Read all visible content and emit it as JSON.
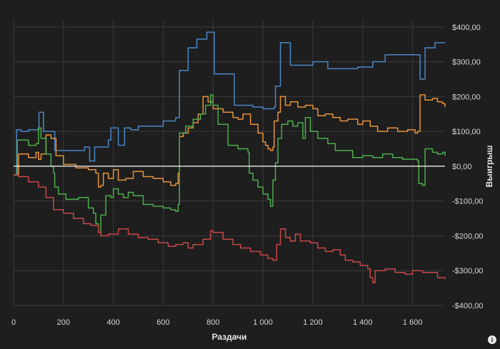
{
  "chart_data": {
    "type": "line",
    "xlabel": "Раздачи",
    "ylabel": "Выигрыш",
    "xlim": [
      0,
      1730
    ],
    "ylim": [
      -400,
      420
    ],
    "x_ticks": [
      0,
      200,
      400,
      600,
      800,
      1000,
      1200,
      1400,
      1600
    ],
    "x_tick_labels": [
      "0",
      "200",
      "400",
      "600",
      "800",
      "1 000",
      "1 200",
      "1 400",
      "1 600"
    ],
    "y_ticks": [
      400,
      300,
      200,
      100,
      0,
      -100,
      -200,
      -300,
      -400
    ],
    "y_tick_labels": [
      "$400,00",
      "$300,00",
      "$200,00",
      "$100,00",
      "$0,00",
      "-$100,00",
      "-$200,00",
      "-$300,00",
      "-$400,00"
    ],
    "grid": true,
    "zero_line": true,
    "series": [
      {
        "color": "#4a86c8",
        "points": [
          [
            0,
            -25
          ],
          [
            10,
            -25
          ],
          [
            12,
            105
          ],
          [
            30,
            100
          ],
          [
            60,
            105
          ],
          [
            100,
            105
          ],
          [
            102,
            155
          ],
          [
            118,
            155
          ],
          [
            120,
            100
          ],
          [
            160,
            100
          ],
          [
            165,
            45
          ],
          [
            210,
            45
          ],
          [
            240,
            45
          ],
          [
            280,
            45
          ],
          [
            285,
            55
          ],
          [
            300,
            55
          ],
          [
            305,
            15
          ],
          [
            320,
            15
          ],
          [
            325,
            55
          ],
          [
            360,
            55
          ],
          [
            380,
            75
          ],
          [
            390,
            110
          ],
          [
            410,
            110
          ],
          [
            420,
            60
          ],
          [
            440,
            60
          ],
          [
            445,
            110
          ],
          [
            470,
            105
          ],
          [
            500,
            115
          ],
          [
            540,
            115
          ],
          [
            580,
            115
          ],
          [
            600,
            130
          ],
          [
            620,
            130
          ],
          [
            650,
            140
          ],
          [
            660,
            140
          ],
          [
            665,
            275
          ],
          [
            690,
            275
          ],
          [
            700,
            340
          ],
          [
            730,
            340
          ],
          [
            735,
            365
          ],
          [
            760,
            365
          ],
          [
            775,
            385
          ],
          [
            800,
            385
          ],
          [
            805,
            265
          ],
          [
            840,
            265
          ],
          [
            870,
            265
          ],
          [
            880,
            265
          ],
          [
            885,
            175
          ],
          [
            920,
            175
          ],
          [
            960,
            170
          ],
          [
            1000,
            165
          ],
          [
            1030,
            165
          ],
          [
            1045,
            170
          ],
          [
            1050,
            230
          ],
          [
            1065,
            230
          ],
          [
            1070,
            355
          ],
          [
            1100,
            355
          ],
          [
            1110,
            290
          ],
          [
            1180,
            290
          ],
          [
            1200,
            300
          ],
          [
            1250,
            300
          ],
          [
            1260,
            280
          ],
          [
            1300,
            280
          ],
          [
            1380,
            285
          ],
          [
            1430,
            285
          ],
          [
            1440,
            300
          ],
          [
            1480,
            300
          ],
          [
            1490,
            320
          ],
          [
            1540,
            320
          ],
          [
            1580,
            320
          ],
          [
            1620,
            320
          ],
          [
            1630,
            250
          ],
          [
            1645,
            250
          ],
          [
            1650,
            340
          ],
          [
            1680,
            340
          ],
          [
            1690,
            355
          ],
          [
            1730,
            355
          ]
        ]
      },
      {
        "color": "#e8923a",
        "points": [
          [
            0,
            -25
          ],
          [
            10,
            -25
          ],
          [
            20,
            35
          ],
          [
            60,
            25
          ],
          [
            90,
            40
          ],
          [
            100,
            20
          ],
          [
            110,
            35
          ],
          [
            130,
            90
          ],
          [
            150,
            80
          ],
          [
            170,
            30
          ],
          [
            200,
            5
          ],
          [
            250,
            -5
          ],
          [
            300,
            -10
          ],
          [
            330,
            -20
          ],
          [
            340,
            -60
          ],
          [
            350,
            -55
          ],
          [
            360,
            -20
          ],
          [
            380,
            -35
          ],
          [
            400,
            -10
          ],
          [
            420,
            -40
          ],
          [
            450,
            -35
          ],
          [
            480,
            -15
          ],
          [
            520,
            -30
          ],
          [
            560,
            -35
          ],
          [
            600,
            -45
          ],
          [
            630,
            -55
          ],
          [
            650,
            -50
          ],
          [
            660,
            -20
          ],
          [
            665,
            85
          ],
          [
            680,
            95
          ],
          [
            700,
            110
          ],
          [
            720,
            125
          ],
          [
            740,
            150
          ],
          [
            760,
            200
          ],
          [
            780,
            185
          ],
          [
            800,
            165
          ],
          [
            840,
            155
          ],
          [
            880,
            140
          ],
          [
            900,
            135
          ],
          [
            920,
            150
          ],
          [
            950,
            120
          ],
          [
            980,
            95
          ],
          [
            1000,
            70
          ],
          [
            1010,
            60
          ],
          [
            1020,
            50
          ],
          [
            1030,
            45
          ],
          [
            1040,
            55
          ],
          [
            1045,
            130
          ],
          [
            1060,
            155
          ],
          [
            1070,
            200
          ],
          [
            1090,
            175
          ],
          [
            1110,
            185
          ],
          [
            1140,
            170
          ],
          [
            1170,
            175
          ],
          [
            1200,
            165
          ],
          [
            1220,
            145
          ],
          [
            1250,
            150
          ],
          [
            1280,
            140
          ],
          [
            1310,
            130
          ],
          [
            1340,
            135
          ],
          [
            1380,
            120
          ],
          [
            1400,
            130
          ],
          [
            1430,
            115
          ],
          [
            1460,
            100
          ],
          [
            1500,
            110
          ],
          [
            1540,
            100
          ],
          [
            1580,
            105
          ],
          [
            1610,
            95
          ],
          [
            1620,
            100
          ],
          [
            1630,
            205
          ],
          [
            1650,
            190
          ],
          [
            1680,
            195
          ],
          [
            1700,
            185
          ],
          [
            1720,
            180
          ],
          [
            1730,
            170
          ]
        ]
      },
      {
        "color": "#4cae4c",
        "points": [
          [
            0,
            -25
          ],
          [
            10,
            -25
          ],
          [
            15,
            75
          ],
          [
            60,
            60
          ],
          [
            90,
            65
          ],
          [
            100,
            110
          ],
          [
            110,
            80
          ],
          [
            130,
            35
          ],
          [
            150,
            0
          ],
          [
            160,
            -20
          ],
          [
            165,
            -60
          ],
          [
            180,
            -80
          ],
          [
            210,
            -95
          ],
          [
            260,
            -90
          ],
          [
            300,
            -120
          ],
          [
            320,
            -135
          ],
          [
            330,
            -165
          ],
          [
            340,
            -190
          ],
          [
            350,
            -140
          ],
          [
            370,
            -85
          ],
          [
            390,
            -90
          ],
          [
            400,
            -65
          ],
          [
            420,
            -80
          ],
          [
            440,
            -90
          ],
          [
            460,
            -75
          ],
          [
            480,
            -85
          ],
          [
            520,
            -110
          ],
          [
            560,
            -115
          ],
          [
            600,
            -120
          ],
          [
            630,
            -125
          ],
          [
            650,
            -130
          ],
          [
            660,
            -110
          ],
          [
            665,
            95
          ],
          [
            690,
            115
          ],
          [
            720,
            135
          ],
          [
            750,
            150
          ],
          [
            770,
            175
          ],
          [
            790,
            205
          ],
          [
            800,
            175
          ],
          [
            820,
            120
          ],
          [
            860,
            60
          ],
          [
            900,
            50
          ],
          [
            940,
            40
          ],
          [
            945,
            -20
          ],
          [
            960,
            -40
          ],
          [
            980,
            -60
          ],
          [
            1000,
            -80
          ],
          [
            1020,
            -95
          ],
          [
            1030,
            -115
          ],
          [
            1040,
            -40
          ],
          [
            1050,
            10
          ],
          [
            1060,
            80
          ],
          [
            1070,
            80
          ],
          [
            1075,
            120
          ],
          [
            1100,
            130
          ],
          [
            1120,
            115
          ],
          [
            1140,
            125
          ],
          [
            1160,
            80
          ],
          [
            1170,
            140
          ],
          [
            1190,
            100
          ],
          [
            1220,
            80
          ],
          [
            1260,
            65
          ],
          [
            1290,
            45
          ],
          [
            1320,
            45
          ],
          [
            1360,
            25
          ],
          [
            1400,
            30
          ],
          [
            1440,
            25
          ],
          [
            1480,
            35
          ],
          [
            1520,
            25
          ],
          [
            1560,
            20
          ],
          [
            1600,
            20
          ],
          [
            1620,
            15
          ],
          [
            1625,
            -50
          ],
          [
            1640,
            -55
          ],
          [
            1650,
            50
          ],
          [
            1680,
            40
          ],
          [
            1700,
            35
          ],
          [
            1720,
            40
          ],
          [
            1730,
            30
          ]
        ]
      },
      {
        "color": "#c84848",
        "points": [
          [
            0,
            -25
          ],
          [
            20,
            -30
          ],
          [
            60,
            -45
          ],
          [
            100,
            -60
          ],
          [
            130,
            -90
          ],
          [
            160,
            -125
          ],
          [
            200,
            -135
          ],
          [
            240,
            -150
          ],
          [
            280,
            -165
          ],
          [
            310,
            -170
          ],
          [
            340,
            -190
          ],
          [
            350,
            -200
          ],
          [
            380,
            -195
          ],
          [
            420,
            -180
          ],
          [
            460,
            -195
          ],
          [
            500,
            -205
          ],
          [
            540,
            -210
          ],
          [
            580,
            -220
          ],
          [
            620,
            -230
          ],
          [
            650,
            -225
          ],
          [
            680,
            -220
          ],
          [
            700,
            -235
          ],
          [
            720,
            -225
          ],
          [
            760,
            -210
          ],
          [
            790,
            -185
          ],
          [
            800,
            -190
          ],
          [
            840,
            -210
          ],
          [
            880,
            -225
          ],
          [
            910,
            -235
          ],
          [
            950,
            -245
          ],
          [
            990,
            -255
          ],
          [
            1020,
            -265
          ],
          [
            1040,
            -270
          ],
          [
            1055,
            -225
          ],
          [
            1070,
            -180
          ],
          [
            1090,
            -205
          ],
          [
            1110,
            -215
          ],
          [
            1130,
            -195
          ],
          [
            1150,
            -215
          ],
          [
            1190,
            -220
          ],
          [
            1220,
            -235
          ],
          [
            1250,
            -245
          ],
          [
            1280,
            -240
          ],
          [
            1310,
            -255
          ],
          [
            1330,
            -270
          ],
          [
            1360,
            -275
          ],
          [
            1390,
            -285
          ],
          [
            1420,
            -295
          ],
          [
            1430,
            -320
          ],
          [
            1440,
            -335
          ],
          [
            1450,
            -300
          ],
          [
            1490,
            -295
          ],
          [
            1530,
            -305
          ],
          [
            1570,
            -310
          ],
          [
            1600,
            -300
          ],
          [
            1640,
            -305
          ],
          [
            1680,
            -305
          ],
          [
            1700,
            -320
          ],
          [
            1730,
            -325
          ]
        ]
      }
    ]
  },
  "ui": {
    "info_icon": "info-icon",
    "info_glyph": "i"
  }
}
